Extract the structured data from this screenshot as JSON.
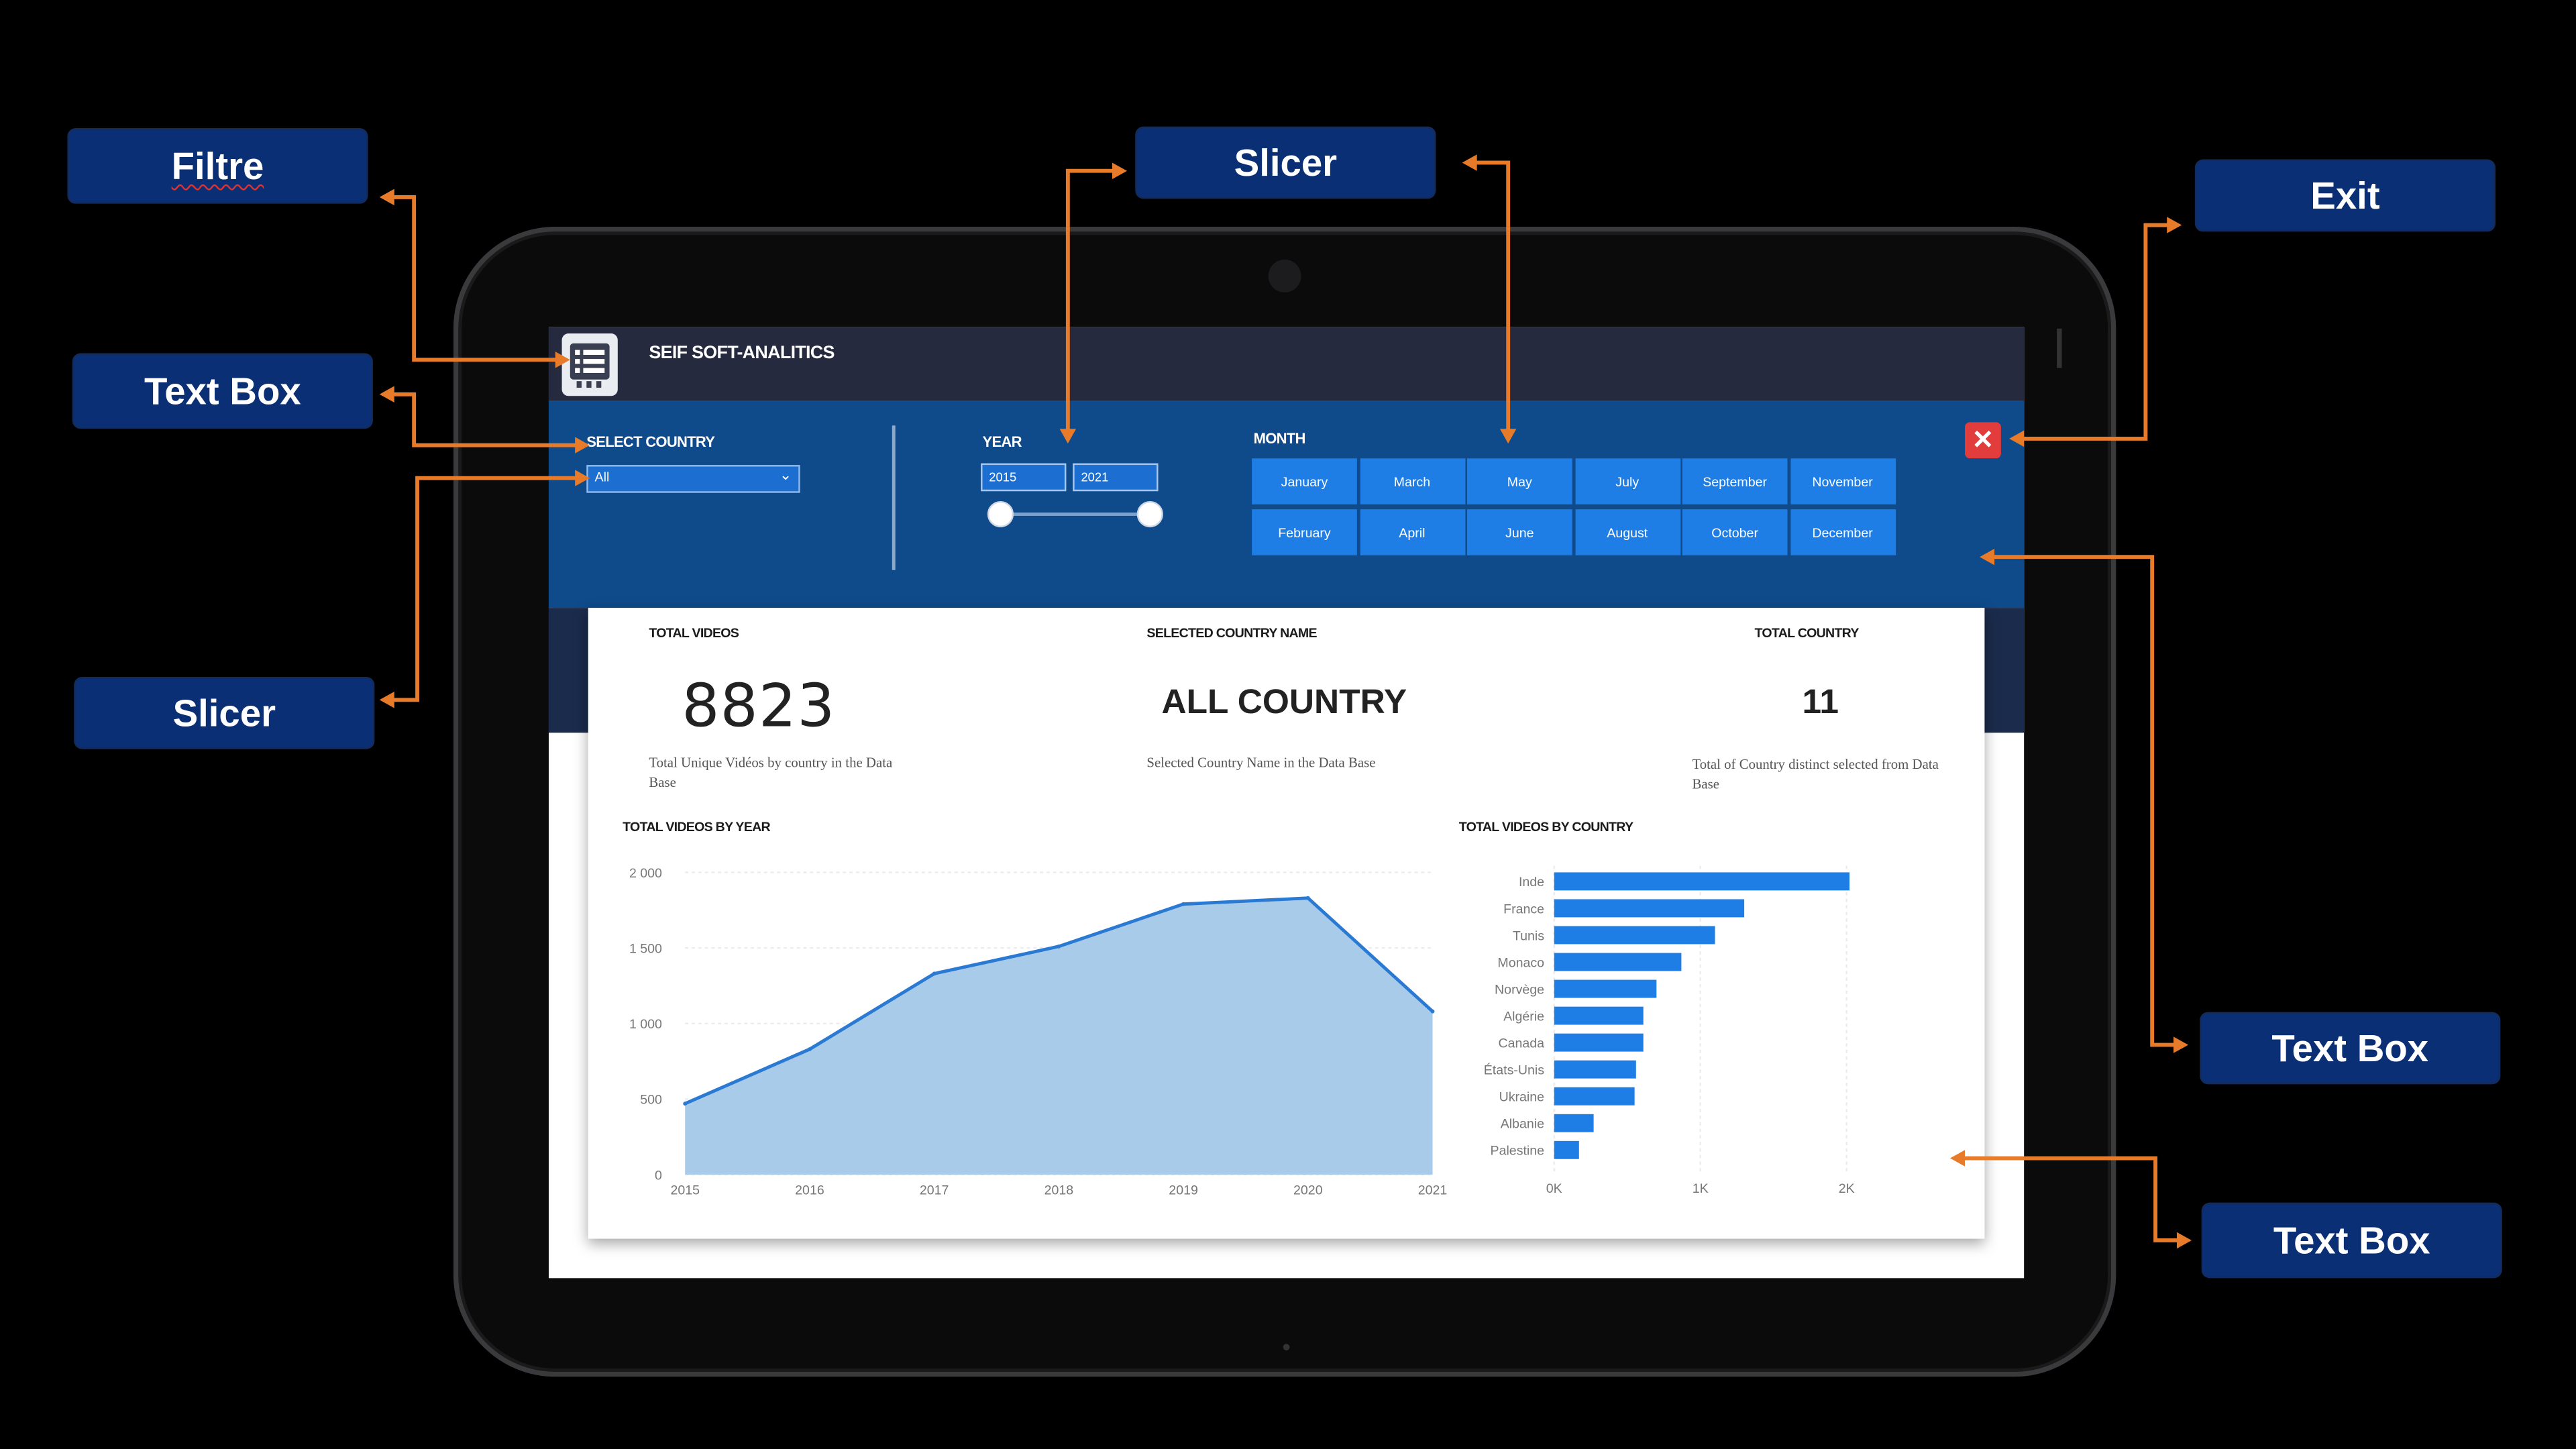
{
  "app": {
    "title": "SEIF SOFT-ANALITICS"
  },
  "filters": {
    "country_label": "SELECT COUNTRY",
    "country_value": "All",
    "year_label": "YEAR",
    "year_from": "2015",
    "year_to": "2021",
    "month_label": "MONTH",
    "months_row1": [
      "January",
      "March",
      "May",
      "July",
      "September",
      "November"
    ],
    "months_row2": [
      "February",
      "April",
      "June",
      "August",
      "October",
      "December"
    ]
  },
  "kpis": {
    "total_videos": {
      "title": "TOTAL VIDEOS",
      "value": "8823",
      "desc": "Total Unique Vidéos by country in the Data Base"
    },
    "selected_country": {
      "title": "SELECTED COUNTRY NAME",
      "value": "ALL COUNTRY",
      "desc": "Selected Country Name in the Data Base"
    },
    "total_country": {
      "title": "TOTAL COUNTRY",
      "value": "11",
      "desc": "Total of Country distinct selected from Data Base"
    }
  },
  "chart_data": [
    {
      "type": "area",
      "title": "TOTAL VIDEOS BY YEAR",
      "x": [
        "2015",
        "2016",
        "2017",
        "2018",
        "2019",
        "2020",
        "2021"
      ],
      "values": [
        470,
        830,
        1330,
        1510,
        1790,
        1830,
        1080
      ],
      "ylim": [
        0,
        2000
      ],
      "yticks": [
        "0",
        "500",
        "1 000",
        "1 500",
        "2 000"
      ],
      "color": "#2a7ad4",
      "fill": "#a9cbea"
    },
    {
      "type": "bar",
      "orientation": "horizontal",
      "title": "TOTAL VIDEOS BY COUNTRY",
      "categories": [
        "Inde",
        "France",
        "Tunis",
        "Monaco",
        "Norvège",
        "Algérie",
        "Canada",
        "États-Unis",
        "Ukraine",
        "Albanie",
        "Palestine"
      ],
      "values": [
        2020,
        1300,
        1100,
        870,
        700,
        610,
        610,
        560,
        550,
        270,
        170
      ],
      "xlim": [
        0,
        2000
      ],
      "xticks": [
        "0K",
        "1K",
        "2K"
      ],
      "color": "#1f7de6"
    }
  ],
  "annotations": {
    "filtre": "Filtre",
    "text_box_left": "Text Box",
    "slicer_left": "Slicer",
    "slicer_top": "Slicer",
    "exit": "Exit",
    "text_box_right_1": "Text Box",
    "text_box_right_2": "Text Box"
  },
  "colors": {
    "arrow": "#e87b2a",
    "annotation_bg": "#0b2f74",
    "filter_bar": "#0f4a8a",
    "month_button": "#1f7de6",
    "exit": "#e23c3c"
  }
}
